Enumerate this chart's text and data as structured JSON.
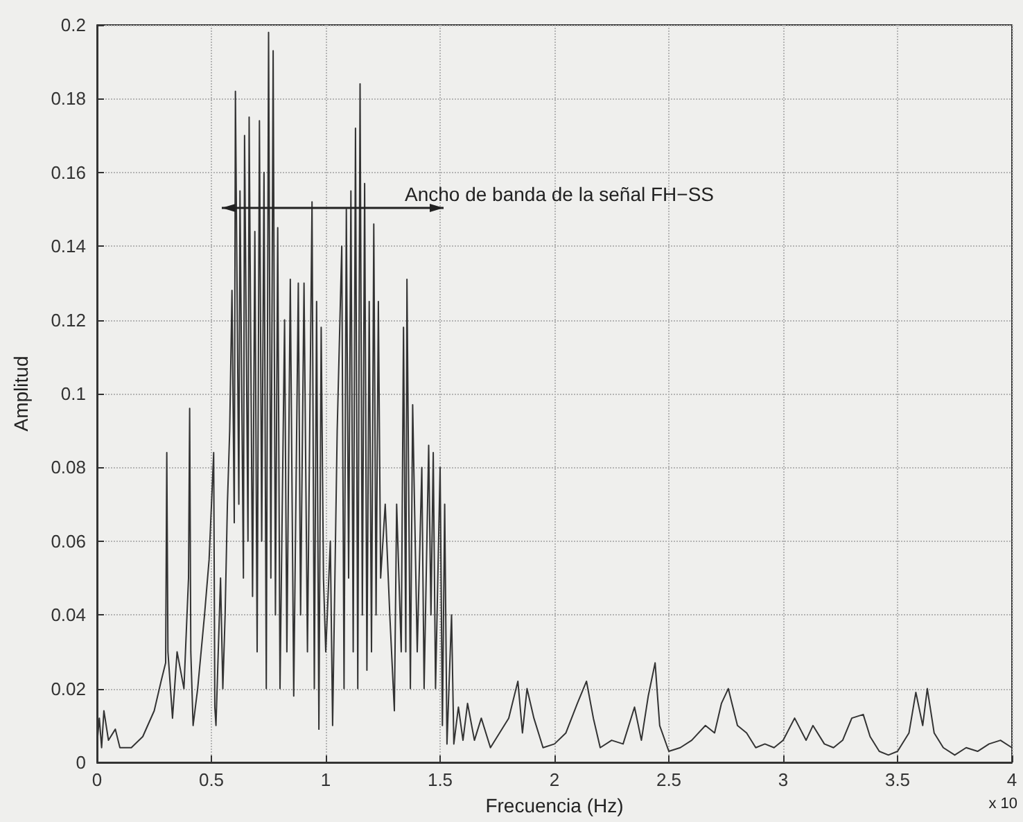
{
  "chart_data": {
    "type": "line",
    "xlabel": "Frecuencia (Hz)",
    "ylabel": "Amplitud",
    "annotations": [
      "Ancho de banda de la señal FH−SS",
      "x 10"
    ],
    "x": [
      0,
      0.01,
      0.02,
      0.03,
      0.05,
      0.08,
      0.1,
      0.15,
      0.2,
      0.25,
      0.28,
      0.3,
      0.305,
      0.31,
      0.33,
      0.35,
      0.38,
      0.4,
      0.405,
      0.41,
      0.42,
      0.44,
      0.47,
      0.49,
      0.51,
      0.515,
      0.52,
      0.54,
      0.55,
      0.56,
      0.57,
      0.58,
      0.59,
      0.6,
      0.605,
      0.62,
      0.625,
      0.64,
      0.645,
      0.66,
      0.665,
      0.68,
      0.69,
      0.7,
      0.71,
      0.72,
      0.73,
      0.74,
      0.75,
      0.76,
      0.77,
      0.78,
      0.79,
      0.8,
      0.82,
      0.83,
      0.845,
      0.86,
      0.88,
      0.89,
      0.905,
      0.92,
      0.94,
      0.95,
      0.96,
      0.97,
      0.98,
      0.99,
      1.0,
      1.02,
      1.03,
      1.05,
      1.07,
      1.08,
      1.09,
      1.1,
      1.11,
      1.12,
      1.13,
      1.14,
      1.15,
      1.16,
      1.17,
      1.18,
      1.19,
      1.2,
      1.21,
      1.22,
      1.23,
      1.24,
      1.26,
      1.28,
      1.3,
      1.31,
      1.33,
      1.34,
      1.35,
      1.355,
      1.37,
      1.38,
      1.4,
      1.42,
      1.43,
      1.45,
      1.46,
      1.47,
      1.48,
      1.5,
      1.51,
      1.52,
      1.53,
      1.55,
      1.56,
      1.58,
      1.6,
      1.62,
      1.65,
      1.68,
      1.72,
      1.76,
      1.8,
      1.84,
      1.86,
      1.88,
      1.91,
      1.95,
      2.0,
      2.05,
      2.1,
      2.14,
      2.17,
      2.2,
      2.25,
      2.3,
      2.35,
      2.38,
      2.41,
      2.44,
      2.46,
      2.5,
      2.55,
      2.6,
      2.66,
      2.7,
      2.73,
      2.76,
      2.8,
      2.84,
      2.88,
      2.92,
      2.96,
      3.0,
      3.05,
      3.1,
      3.13,
      3.18,
      3.22,
      3.26,
      3.3,
      3.35,
      3.38,
      3.42,
      3.46,
      3.5,
      3.55,
      3.58,
      3.61,
      3.63,
      3.66,
      3.7,
      3.75,
      3.8,
      3.85,
      3.9,
      3.95,
      4.0
    ],
    "series": [
      {
        "color": "#333333",
        "values": [
          0.005,
          0.012,
          0.004,
          0.014,
          0.006,
          0.009,
          0.004,
          0.004,
          0.007,
          0.014,
          0.022,
          0.027,
          0.084,
          0.03,
          0.012,
          0.03,
          0.02,
          0.05,
          0.096,
          0.03,
          0.01,
          0.02,
          0.04,
          0.055,
          0.084,
          0.015,
          0.01,
          0.05,
          0.02,
          0.04,
          0.07,
          0.09,
          0.128,
          0.065,
          0.182,
          0.07,
          0.155,
          0.05,
          0.17,
          0.06,
          0.175,
          0.045,
          0.144,
          0.03,
          0.174,
          0.06,
          0.16,
          0.02,
          0.198,
          0.05,
          0.193,
          0.04,
          0.145,
          0.02,
          0.12,
          0.03,
          0.131,
          0.018,
          0.13,
          0.04,
          0.13,
          0.03,
          0.152,
          0.02,
          0.125,
          0.009,
          0.118,
          0.05,
          0.03,
          0.06,
          0.01,
          0.09,
          0.14,
          0.02,
          0.15,
          0.05,
          0.155,
          0.03,
          0.172,
          0.02,
          0.184,
          0.04,
          0.157,
          0.025,
          0.125,
          0.03,
          0.146,
          0.04,
          0.125,
          0.05,
          0.07,
          0.04,
          0.014,
          0.07,
          0.03,
          0.118,
          0.03,
          0.131,
          0.02,
          0.097,
          0.03,
          0.08,
          0.02,
          0.086,
          0.04,
          0.084,
          0.02,
          0.08,
          0.01,
          0.07,
          0.005,
          0.04,
          0.005,
          0.015,
          0.006,
          0.016,
          0.006,
          0.012,
          0.004,
          0.008,
          0.012,
          0.022,
          0.008,
          0.02,
          0.012,
          0.004,
          0.005,
          0.008,
          0.016,
          0.022,
          0.012,
          0.004,
          0.006,
          0.005,
          0.015,
          0.006,
          0.018,
          0.027,
          0.01,
          0.003,
          0.004,
          0.006,
          0.01,
          0.008,
          0.016,
          0.02,
          0.01,
          0.008,
          0.004,
          0.005,
          0.004,
          0.006,
          0.012,
          0.006,
          0.01,
          0.005,
          0.004,
          0.006,
          0.012,
          0.013,
          0.007,
          0.003,
          0.002,
          0.003,
          0.008,
          0.019,
          0.01,
          0.02,
          0.008,
          0.004,
          0.002,
          0.004,
          0.003,
          0.005,
          0.006,
          0.004
        ]
      }
    ],
    "xlim": [
      0,
      4
    ],
    "xticks": [
      0,
      0.5,
      1,
      1.5,
      2,
      2.5,
      3,
      3.5,
      4
    ],
    "ylim": [
      0,
      0.2
    ],
    "yticks": [
      0,
      0.02,
      0.04,
      0.06,
      0.08,
      0.1,
      0.12,
      0.14,
      0.16,
      0.18,
      0.2
    ],
    "grid": true,
    "line_style": "solid",
    "marker": "none"
  }
}
